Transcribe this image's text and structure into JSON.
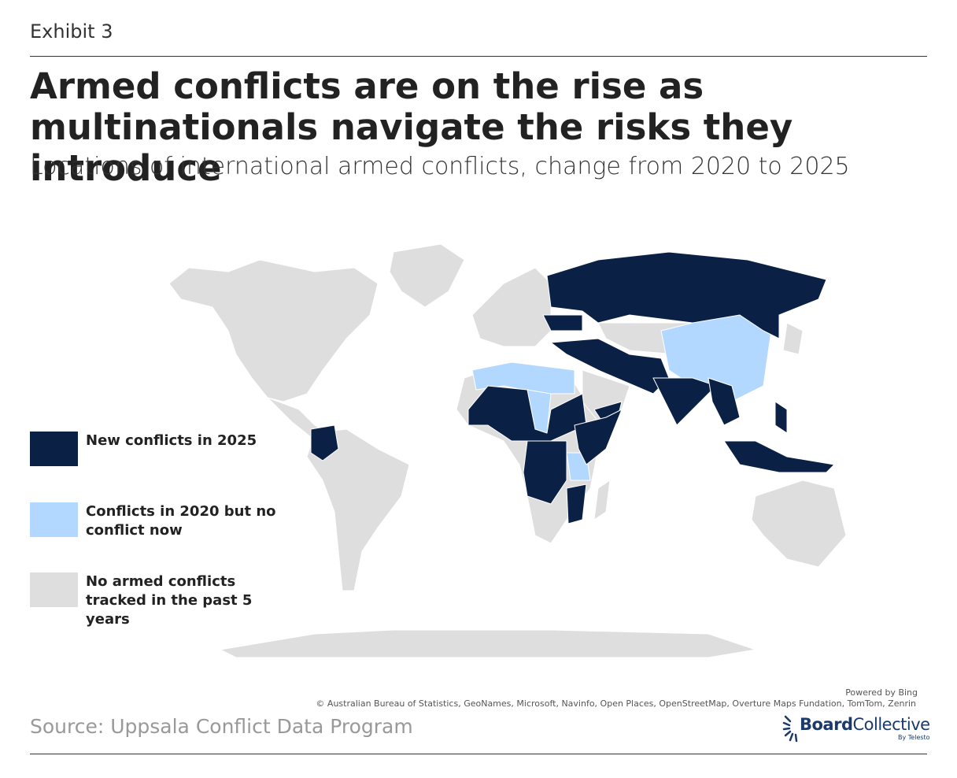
{
  "header": {
    "exhibit": "Exhibit 3",
    "title": "Armed conflicts are on the rise as multinationals navigate the risks they introduce",
    "subtitle": "Locations of international armed conflicts, change from 2020 to 2025"
  },
  "legend": [
    {
      "label": "New conflicts in 2025",
      "color": "#0a2044"
    },
    {
      "label": "Conflicts in 2020 but no conflict now",
      "color": "#b3d8ff"
    },
    {
      "label": "No armed conflicts tracked in the past 5 years",
      "color": "#dedede"
    }
  ],
  "attribution": {
    "powered_by": "Powered by Bing",
    "credits": "© Australian Bureau of Statistics, GeoNames, Microsoft, Navinfo, Open Places, OpenStreetMap, Overture Maps Fundation, TomTom, Zenrin"
  },
  "source": "Source: Uppsala Conflict Data Program",
  "logo": {
    "name_bold": "Board",
    "name_rest": "Collective",
    "tagline": "By Telesto"
  }
}
